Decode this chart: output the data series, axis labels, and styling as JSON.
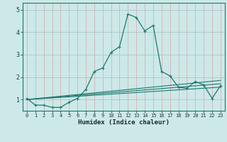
{
  "xlabel": "Humidex (Indice chaleur)",
  "bg_color": "#cde8e8",
  "line_color": "#1a7a6e",
  "xlim": [
    -0.5,
    23.5
  ],
  "ylim": [
    0.5,
    5.3
  ],
  "xticks": [
    0,
    1,
    2,
    3,
    4,
    5,
    6,
    7,
    8,
    9,
    10,
    11,
    12,
    13,
    14,
    15,
    16,
    17,
    18,
    19,
    20,
    21,
    22,
    23
  ],
  "yticks": [
    1,
    2,
    3,
    4,
    5
  ],
  "main_x": [
    0,
    1,
    2,
    3,
    4,
    5,
    6,
    7,
    8,
    9,
    10,
    11,
    12,
    13,
    14,
    15,
    16,
    17,
    18,
    19,
    20,
    21,
    22,
    23
  ],
  "main_y": [
    1.05,
    0.75,
    0.75,
    0.65,
    0.65,
    0.88,
    1.05,
    1.45,
    2.25,
    2.4,
    3.1,
    3.35,
    4.8,
    4.65,
    4.05,
    4.3,
    2.25,
    2.05,
    1.55,
    1.5,
    1.8,
    1.65,
    1.05,
    1.62
  ],
  "ref_lines": [
    {
      "x": [
        0,
        23
      ],
      "y": [
        1.0,
        1.55
      ]
    },
    {
      "x": [
        0,
        23
      ],
      "y": [
        1.0,
        1.7
      ]
    },
    {
      "x": [
        0,
        23
      ],
      "y": [
        1.0,
        1.85
      ]
    }
  ],
  "vgrid_color": "#d8b0b0",
  "hgrid_color": "#a8c8c8",
  "spine_color": "#1a7a6e",
  "tick_label_color": "#1a3a3a",
  "xlabel_color": "#1a2a2a"
}
